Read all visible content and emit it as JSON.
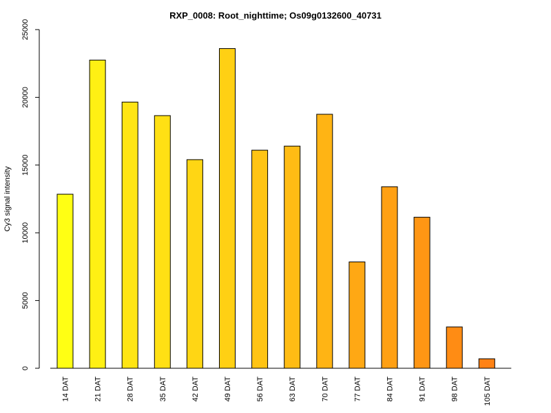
{
  "chart_data": {
    "type": "bar",
    "title": "RXP_0008: Root_nighttime; Os09g0132600_40731",
    "xlabel": "",
    "ylabel": "Cy3 signal intensity",
    "ylim": [
      0,
      25000
    ],
    "yticks": [
      0,
      5000,
      10000,
      15000,
      20000,
      25000
    ],
    "grid": false,
    "legend": "none",
    "categories": [
      "14 DAT",
      "21 DAT",
      "28 DAT",
      "35 DAT",
      "42 DAT",
      "49 DAT",
      "56 DAT",
      "63 DAT",
      "70 DAT",
      "77 DAT",
      "84 DAT",
      "91 DAT",
      "98 DAT",
      "105 DAT"
    ],
    "values": [
      12850,
      22750,
      19650,
      18650,
      15400,
      23600,
      16100,
      16400,
      18750,
      7850,
      13400,
      11150,
      3050,
      700
    ],
    "colors": [
      "#FFFF14",
      "#FFF014",
      "#FFE514",
      "#FFE014",
      "#FFD614",
      "#FFD014",
      "#FFC414",
      "#FFBC14",
      "#FFB414",
      "#FFA814",
      "#FFA014",
      "#FF9614",
      "#FF8C14",
      "#FF8214"
    ],
    "bar_border_color": "#000000"
  }
}
